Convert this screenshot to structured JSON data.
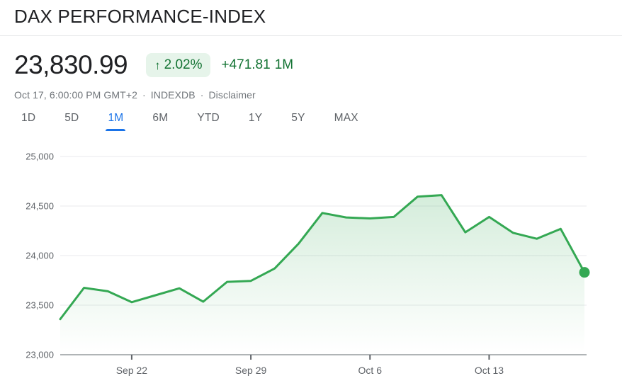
{
  "header": {
    "title": "DAX PERFORMANCE-INDEX"
  },
  "quote": {
    "price": "23,830.99",
    "arrow": "↑",
    "change_percent": "2.02%",
    "change_absolute": "+471.81",
    "change_period": "1M",
    "meta": {
      "datetime": "Oct 17, 6:00:00 PM GMT+2",
      "separator": "·",
      "source": "INDEXDB",
      "disclaimer": "Disclaimer"
    }
  },
  "tabs": [
    {
      "label": "1D",
      "selected": false
    },
    {
      "label": "5D",
      "selected": false
    },
    {
      "label": "1M",
      "selected": true
    },
    {
      "label": "6M",
      "selected": false
    },
    {
      "label": "YTD",
      "selected": false
    },
    {
      "label": "1Y",
      "selected": false
    },
    {
      "label": "5Y",
      "selected": false
    },
    {
      "label": "MAX",
      "selected": false
    }
  ],
  "colors": {
    "accent_blue": "#1a73e8",
    "line_green": "#34a853",
    "text_green": "#137333",
    "badge_bg": "#e6f4ea",
    "grid": "#e8eaed",
    "axis": "#80868b",
    "tick_label": "#5f6368"
  },
  "chart_data": {
    "type": "area",
    "x": [
      "Sep 17",
      "Sep 18",
      "Sep 19",
      "Sep 22",
      "Sep 23",
      "Sep 24",
      "Sep 25",
      "Sep 26",
      "Sep 29",
      "Sep 30",
      "Oct 1",
      "Oct 2",
      "Oct 3",
      "Oct 6",
      "Oct 7",
      "Oct 8",
      "Oct 9",
      "Oct 10",
      "Oct 13",
      "Oct 14",
      "Oct 15",
      "Oct 16",
      "Oct 17"
    ],
    "values": [
      23359,
      23675,
      23640,
      23530,
      23600,
      23670,
      23535,
      23735,
      23745,
      23870,
      24120,
      24430,
      24385,
      24375,
      24390,
      24595,
      24610,
      24235,
      24390,
      24230,
      24170,
      24270,
      23830.99
    ],
    "x_tick_indices": [
      3,
      8,
      13,
      18
    ],
    "x_tick_labels": [
      "Sep 22",
      "Sep 29",
      "Oct 6",
      "Oct 13"
    ],
    "y_ticks": [
      23000,
      23500,
      24000,
      24500,
      25000
    ],
    "y_tick_labels": [
      "23,000",
      "23,500",
      "24,000",
      "24,500",
      "25,000"
    ],
    "ylim": [
      23000,
      25000
    ],
    "xlabel": "",
    "ylabel": "",
    "grid": true,
    "legend": false,
    "end_marker": true
  }
}
